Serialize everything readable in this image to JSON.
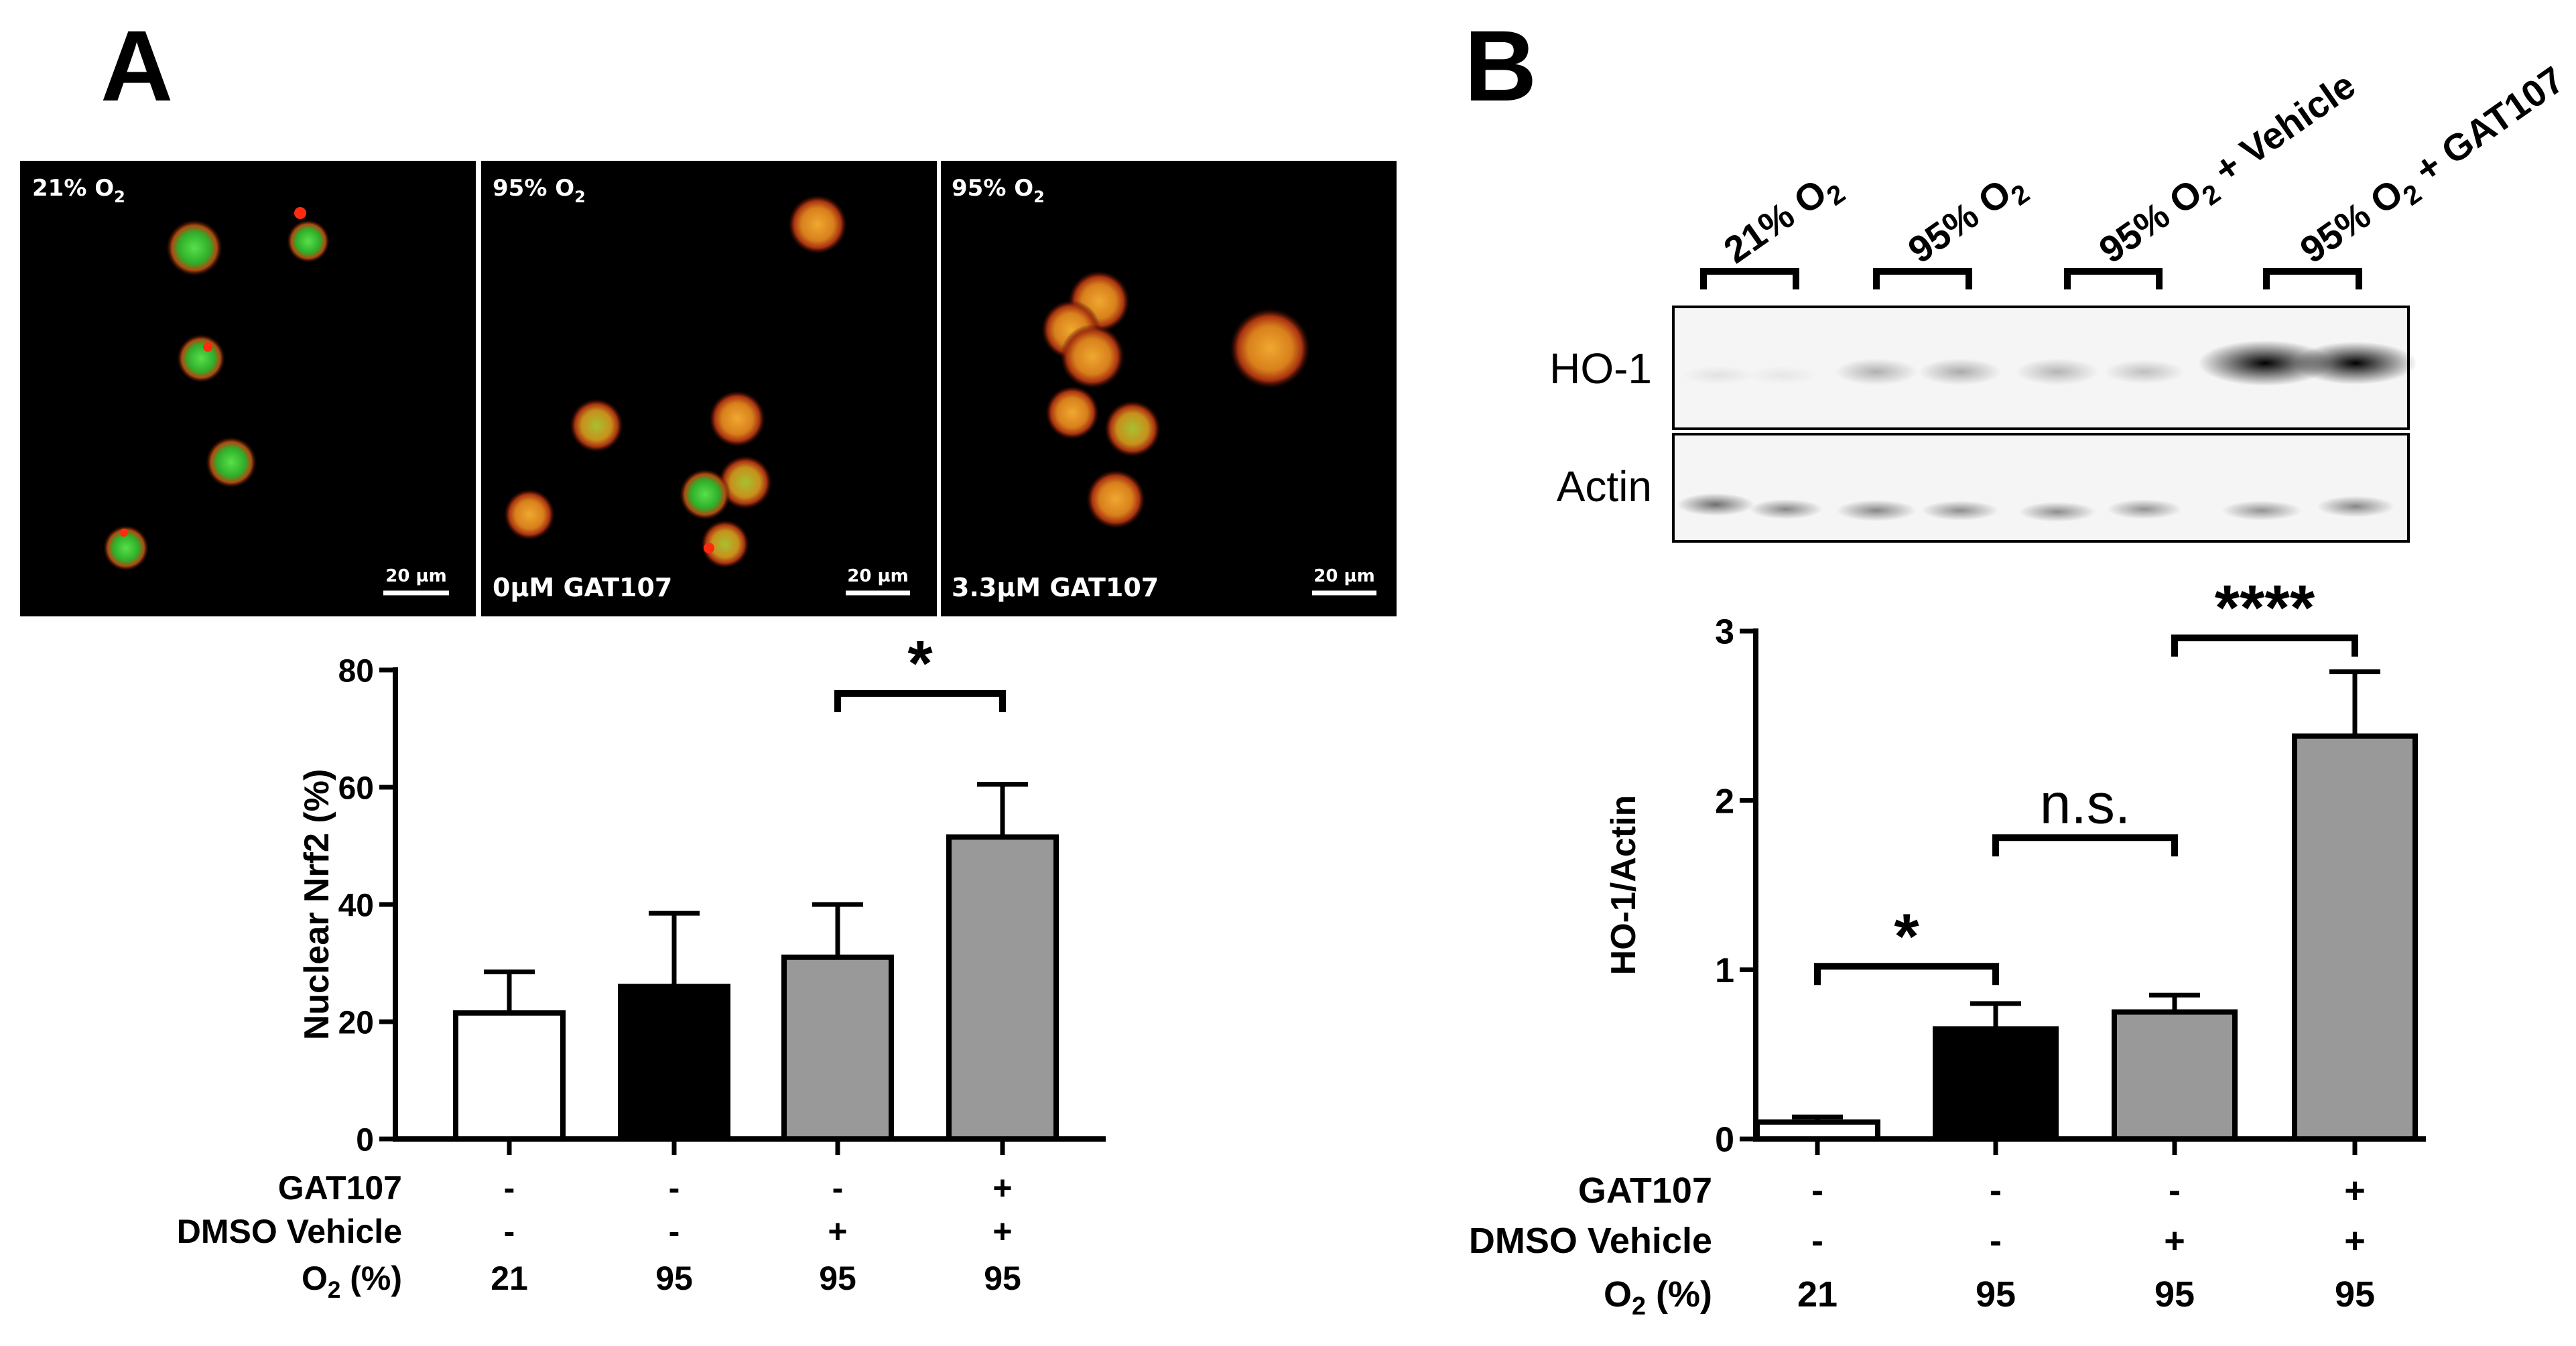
{
  "panel_a": {
    "letter": "A",
    "micrographs": [
      {
        "condition": "21% O",
        "condition_sub": "2",
        "treatment": "",
        "scale_bar": "20 µm"
      },
      {
        "condition": "95% O",
        "condition_sub": "2",
        "treatment": "0µM GAT107",
        "scale_bar": "20 µm"
      },
      {
        "condition": "95% O",
        "condition_sub": "2",
        "treatment": "3.3µM GAT107",
        "scale_bar": "20 µm"
      }
    ]
  },
  "panel_b": {
    "letter": "B",
    "blot": {
      "lane_groups": [
        {
          "label": "21% O",
          "sub": "2",
          "suffix": ""
        },
        {
          "label": "95% O",
          "sub": "2",
          "suffix": ""
        },
        {
          "label": "95% O",
          "sub": "2",
          "suffix": " + Vehicle"
        },
        {
          "label": "95% O",
          "sub": "2",
          "suffix": " + GAT107"
        }
      ],
      "rows": [
        "HO-1",
        "Actin"
      ]
    }
  },
  "conditions_table": {
    "row_labels": {
      "gat": "GAT107",
      "dmso": "DMSO Vehicle",
      "o2_prefix": "O",
      "o2_sub": "2",
      "o2_suffix": " (%)"
    },
    "gat": [
      "-",
      "-",
      "-",
      "+"
    ],
    "dmso": [
      "-",
      "-",
      "+",
      "+"
    ],
    "o2": [
      "21",
      "95",
      "95",
      "95"
    ]
  },
  "colors": {
    "white_bar": "#ffffff",
    "black_bar": "#000000",
    "gray_bar": "#999999",
    "nrf2_green": "#2fbf2a",
    "cell_orange": "#e08a1e"
  },
  "chart_data": [
    {
      "type": "bar",
      "panel": "A",
      "ylabel": "Nuclear Nrf2 (%)",
      "ylim": [
        0,
        80
      ],
      "yticks": [
        0,
        20,
        40,
        60,
        80
      ],
      "values": [
        21.5,
        26,
        31,
        51.5
      ],
      "errors": [
        7,
        12.5,
        9,
        9
      ],
      "bar_colors": [
        "#ffffff",
        "#000000",
        "#999999",
        "#999999"
      ],
      "annotations": [
        {
          "from": 2,
          "to": 3,
          "label": "*",
          "y": 76
        }
      ]
    },
    {
      "type": "bar",
      "panel": "B",
      "ylabel": "HO-1/Actin",
      "ylim": [
        0,
        3
      ],
      "yticks": [
        0,
        1,
        2,
        3
      ],
      "values": [
        0.1,
        0.65,
        0.75,
        2.38
      ],
      "errors": [
        0.03,
        0.15,
        0.1,
        0.38
      ],
      "bar_colors": [
        "#ffffff",
        "#000000",
        "#999999",
        "#999999"
      ],
      "annotations": [
        {
          "from": 0,
          "to": 1,
          "label": "*",
          "y": 1.02
        },
        {
          "from": 1,
          "to": 2,
          "label": "n.s.",
          "y": 1.78
        },
        {
          "from": 2,
          "to": 3,
          "label": "****",
          "y": 2.96
        }
      ]
    }
  ]
}
